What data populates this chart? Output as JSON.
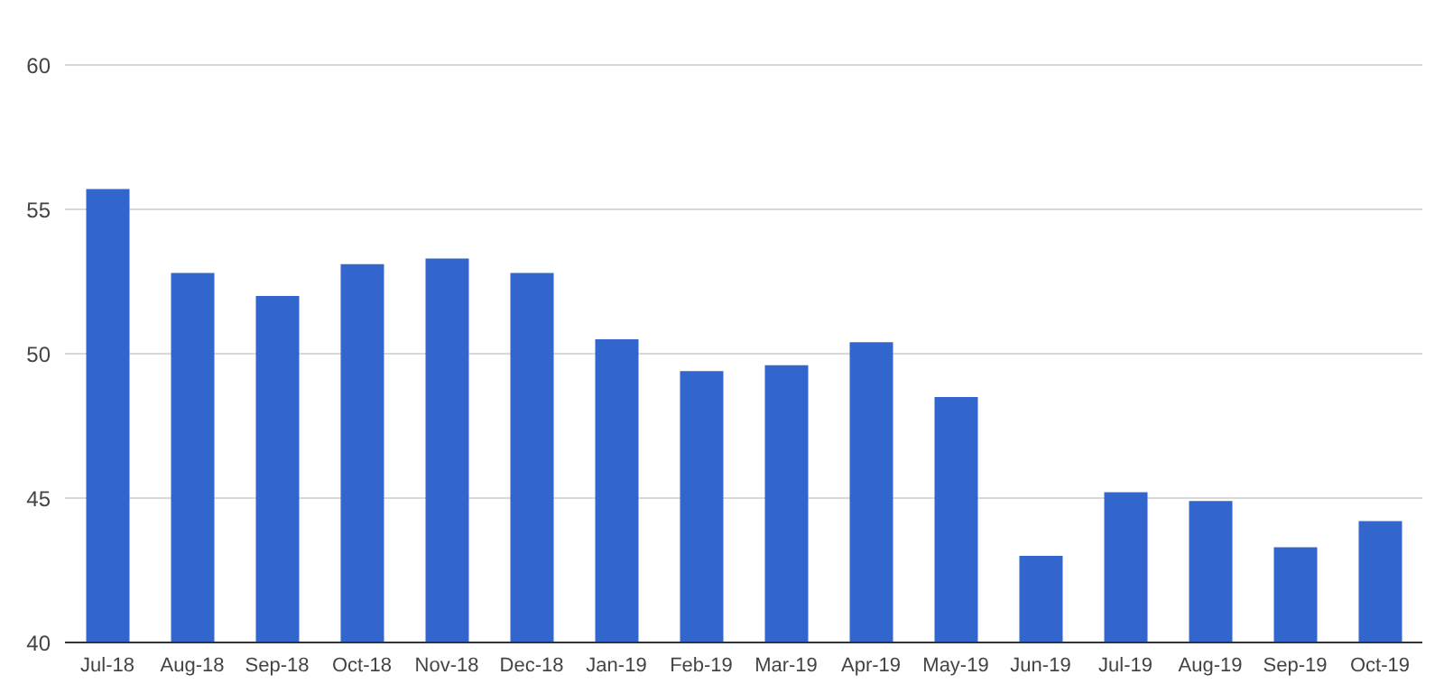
{
  "chart_data": {
    "type": "bar",
    "categories": [
      "Jul-18",
      "Aug-18",
      "Sep-18",
      "Oct-18",
      "Nov-18",
      "Dec-18",
      "Jan-19",
      "Feb-19",
      "Mar-19",
      "Apr-19",
      "May-19",
      "Jun-19",
      "Jul-19",
      "Aug-19",
      "Sep-19",
      "Oct-19"
    ],
    "values": [
      55.7,
      52.8,
      52.0,
      53.1,
      53.3,
      52.8,
      50.5,
      49.4,
      49.6,
      50.4,
      48.5,
      43.0,
      45.2,
      44.9,
      43.3,
      44.2
    ],
    "color": "#3366cc",
    "ylim": [
      40,
      60
    ],
    "yticks": [
      40,
      45,
      50,
      55,
      60
    ],
    "grid": "y",
    "legend": false
  }
}
